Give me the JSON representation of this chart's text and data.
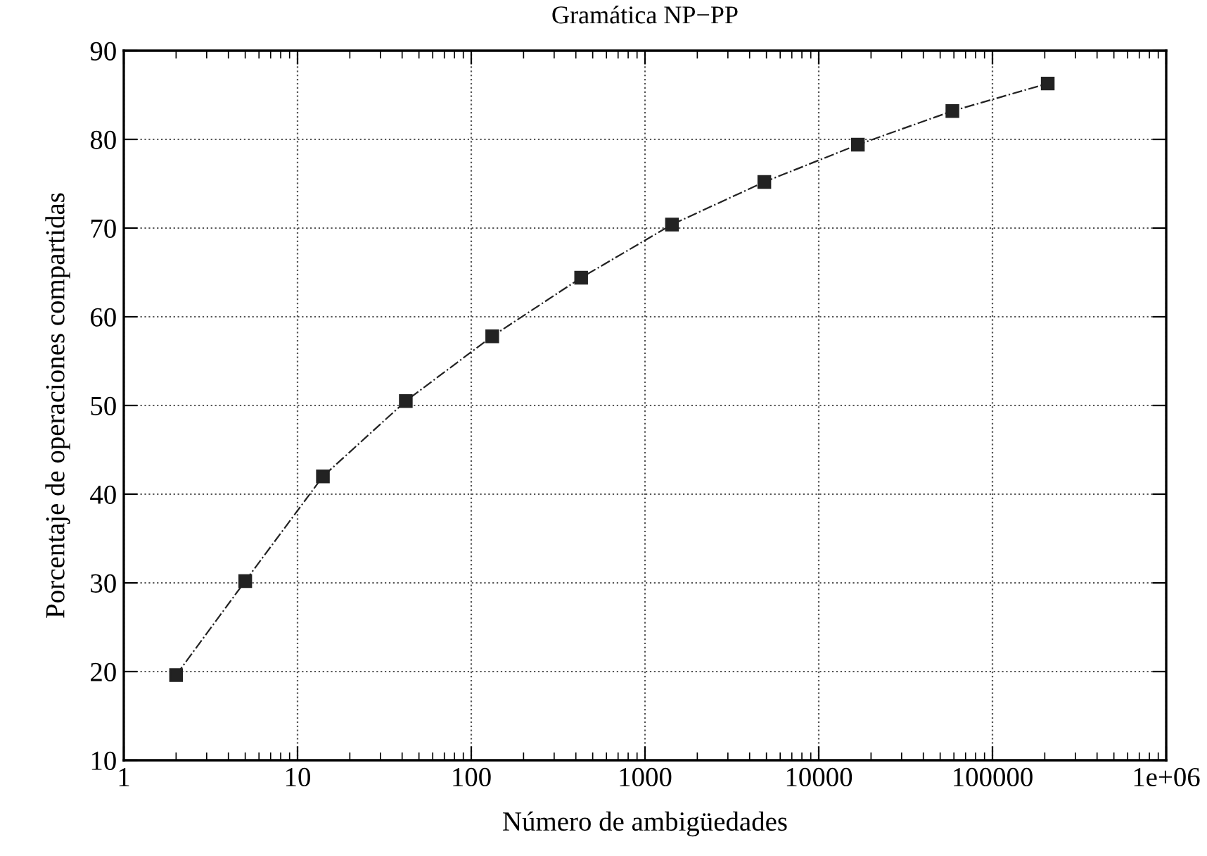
{
  "chart_data": {
    "type": "line",
    "title": "Gramática NP−PP",
    "xlabel": "Número de ambigüedades",
    "ylabel": "Porcentaje de operaciones compartidas",
    "x": [
      2,
      5,
      14,
      42,
      132,
      429,
      1430,
      4862,
      16796,
      58786,
      208012
    ],
    "series": [
      {
        "color": "#222222",
        "values": [
          19.6,
          30.2,
          42.0,
          50.5,
          57.8,
          64.4,
          70.4,
          75.2,
          79.4,
          83.2,
          86.3
        ]
      }
    ],
    "log": "x",
    "xlim": [
      1,
      1000000
    ],
    "ylim": [
      10,
      90
    ],
    "xticks": [
      1,
      10,
      100,
      1000,
      10000,
      100000,
      {
        "value": 1000000,
        "label": "1e+06"
      }
    ],
    "yticks": [
      10,
      20,
      30,
      40,
      50,
      60,
      70,
      80,
      90
    ],
    "grid": true,
    "marker": "square",
    "line_style": "dashdot"
  }
}
